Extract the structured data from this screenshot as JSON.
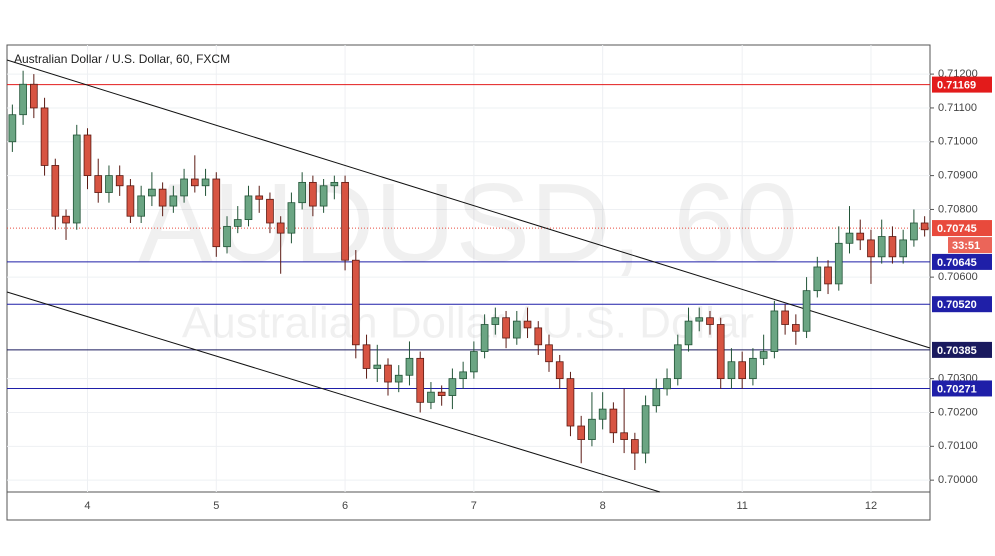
{
  "chart_data": {
    "type": "candlestick",
    "title": "Australian Dollar / U.S. Dollar, 60, FXCM",
    "watermark": "AUDUSD, 60",
    "watermark_subtitle": "Australian Dollar / U.S. Dollar",
    "categories": [
      null,
      null,
      null,
      null,
      null,
      null,
      null,
      "4",
      null,
      null,
      null,
      null,
      null,
      null,
      null,
      null,
      null,
      null,
      null,
      "5",
      null,
      null,
      null,
      null,
      null,
      null,
      null,
      null,
      null,
      null,
      null,
      "6",
      null,
      null,
      null,
      null,
      null,
      null,
      null,
      null,
      null,
      null,
      null,
      "7",
      null,
      null,
      null,
      null,
      null,
      null,
      null,
      null,
      null,
      null,
      null,
      "8",
      null,
      null,
      null,
      null,
      null,
      null,
      null,
      null,
      null,
      null,
      null,
      null,
      "11",
      null,
      null,
      null,
      null,
      null,
      null,
      null,
      null,
      null,
      null,
      null,
      "12",
      null,
      null,
      null,
      null,
      null
    ],
    "open": [
      0.71,
      0.7108,
      0.7117,
      0.711,
      0.7093,
      0.7078,
      0.7076,
      0.7102,
      0.709,
      0.7085,
      0.709,
      0.7087,
      0.7078,
      0.7084,
      0.7086,
      0.7081,
      0.7084,
      0.7089,
      0.7087,
      0.7089,
      0.7069,
      0.7075,
      0.7077,
      0.7084,
      0.7083,
      0.7076,
      0.7073,
      0.7082,
      0.7088,
      0.7081,
      0.7087,
      0.7088,
      0.7065,
      0.704,
      0.7033,
      0.7034,
      0.7029,
      0.7031,
      0.7036,
      0.7023,
      0.7026,
      0.7025,
      0.703,
      0.7032,
      0.7038,
      0.7046,
      0.7048,
      0.7042,
      0.7047,
      0.7045,
      0.704,
      0.7035,
      0.703,
      0.7016,
      0.7012,
      0.7018,
      0.7021,
      0.7014,
      0.7012,
      0.7008,
      0.7022,
      0.7027,
      0.703,
      0.704,
      0.7047,
      0.7048,
      0.7046,
      0.703,
      0.7035,
      0.703,
      0.7036,
      0.7038,
      0.705,
      0.7046,
      0.7044,
      0.7056,
      0.7063,
      0.7058,
      0.707,
      0.7073,
      0.7071,
      0.7066,
      0.7072,
      0.7066,
      0.7071,
      0.7076
    ],
    "high": [
      0.7111,
      0.7121,
      0.712,
      0.7113,
      0.7095,
      0.708,
      0.7105,
      0.7104,
      0.7095,
      0.7093,
      0.7093,
      0.7089,
      0.7087,
      0.7091,
      0.7088,
      0.7087,
      0.7092,
      0.7096,
      0.7092,
      0.7091,
      0.7078,
      0.7081,
      0.7087,
      0.7087,
      0.7085,
      0.7078,
      0.7085,
      0.7091,
      0.709,
      0.7089,
      0.709,
      0.709,
      0.7068,
      0.7043,
      0.704,
      0.7036,
      0.7034,
      0.7041,
      0.7038,
      0.7029,
      0.7028,
      0.7033,
      0.7035,
      0.7041,
      0.7049,
      0.7051,
      0.705,
      0.705,
      0.7051,
      0.7047,
      0.7043,
      0.7037,
      0.7032,
      0.7019,
      0.7026,
      0.7026,
      0.7023,
      0.7027,
      0.7014,
      0.7025,
      0.703,
      0.7033,
      0.7043,
      0.7051,
      0.7051,
      0.705,
      0.7048,
      0.7039,
      0.7038,
      0.7039,
      0.7043,
      0.7053,
      0.7052,
      0.7049,
      0.706,
      0.7066,
      0.7065,
      0.7075,
      0.7081,
      0.7077,
      0.7074,
      0.7077,
      0.7075,
      0.7074,
      0.708,
      0.7078
    ],
    "low": [
      0.7097,
      0.7105,
      0.7107,
      0.709,
      0.7074,
      0.7071,
      0.7074,
      0.7086,
      0.7082,
      0.7082,
      0.7084,
      0.7076,
      0.7076,
      0.7081,
      0.7078,
      0.7079,
      0.7082,
      0.7085,
      0.7084,
      0.7066,
      0.7067,
      0.7073,
      0.7075,
      0.7079,
      0.7073,
      0.7061,
      0.707,
      0.708,
      0.7078,
      0.7079,
      0.7083,
      0.7062,
      0.7036,
      0.703,
      0.7029,
      0.7025,
      0.7026,
      0.7028,
      0.702,
      0.7021,
      0.7022,
      0.7021,
      0.7027,
      0.703,
      0.7036,
      0.7043,
      0.7039,
      0.704,
      0.7042,
      0.7037,
      0.7032,
      0.7027,
      0.7013,
      0.7005,
      0.701,
      0.7015,
      0.7011,
      0.7008,
      0.7003,
      0.7005,
      0.702,
      0.7025,
      0.7028,
      0.7038,
      0.7044,
      0.7043,
      0.7027,
      0.7027,
      0.7027,
      0.7028,
      0.7034,
      0.7036,
      0.7043,
      0.704,
      0.7042,
      0.7054,
      0.7055,
      0.7056,
      0.7067,
      0.7068,
      0.7058,
      0.7064,
      0.7064,
      0.7064,
      0.7069,
      0.7072
    ],
    "close": [
      0.7108,
      0.7117,
      0.711,
      0.7093,
      0.7078,
      0.7076,
      0.7102,
      0.709,
      0.7085,
      0.709,
      0.7087,
      0.7078,
      0.7084,
      0.7086,
      0.7081,
      0.7084,
      0.7089,
      0.7087,
      0.7089,
      0.7069,
      0.7075,
      0.7077,
      0.7084,
      0.7083,
      0.7076,
      0.7073,
      0.7082,
      0.7088,
      0.7081,
      0.7087,
      0.7088,
      0.7065,
      0.704,
      0.7033,
      0.7034,
      0.7029,
      0.7031,
      0.7036,
      0.7023,
      0.7026,
      0.7025,
      0.703,
      0.7032,
      0.7038,
      0.7046,
      0.7048,
      0.7042,
      0.7047,
      0.7045,
      0.704,
      0.7035,
      0.703,
      0.7016,
      0.7012,
      0.7018,
      0.7021,
      0.7014,
      0.7012,
      0.7008,
      0.7022,
      0.7027,
      0.703,
      0.704,
      0.7047,
      0.7048,
      0.7046,
      0.703,
      0.7035,
      0.703,
      0.7036,
      0.7038,
      0.705,
      0.7046,
      0.7044,
      0.7056,
      0.7063,
      0.7058,
      0.707,
      0.7073,
      0.7071,
      0.7066,
      0.7072,
      0.7066,
      0.7071,
      0.7076,
      0.7074
    ],
    "up_color": "#6ba583",
    "down_color": "#d75442",
    "ylim": [
      0.69965,
      0.71286
    ],
    "yticks": [
      {
        "value": 0.7,
        "label": "0.70000"
      },
      {
        "value": 0.701,
        "label": "0.70100"
      },
      {
        "value": 0.702,
        "label": "0.70200"
      },
      {
        "value": 0.703,
        "label": "0.70300"
      },
      {
        "value": 0.706,
        "label": "0.70600"
      },
      {
        "value": 0.708,
        "label": "0.70800"
      },
      {
        "value": 0.709,
        "label": "0.70900"
      },
      {
        "value": 0.71,
        "label": "0.71000"
      },
      {
        "value": 0.711,
        "label": "0.71100"
      },
      {
        "value": 0.712,
        "label": "0.71200"
      }
    ],
    "grid": true,
    "levels": [
      {
        "value": 0.71169,
        "label": "0.71169",
        "color": "#e31b1b"
      },
      {
        "value": 0.70645,
        "label": "0.70645",
        "color": "#1f1fa8"
      },
      {
        "value": 0.7052,
        "label": "0.70520",
        "color": "#1f1fa8"
      },
      {
        "value": 0.70385,
        "label": "0.70385",
        "color": "#1a1a5e"
      },
      {
        "value": 0.70271,
        "label": "0.70271",
        "color": "#1f1fa8"
      }
    ],
    "last_price": {
      "value": 0.70745,
      "label": "0.70745",
      "color": "#e84a3c"
    },
    "countdown": "33:51"
  }
}
